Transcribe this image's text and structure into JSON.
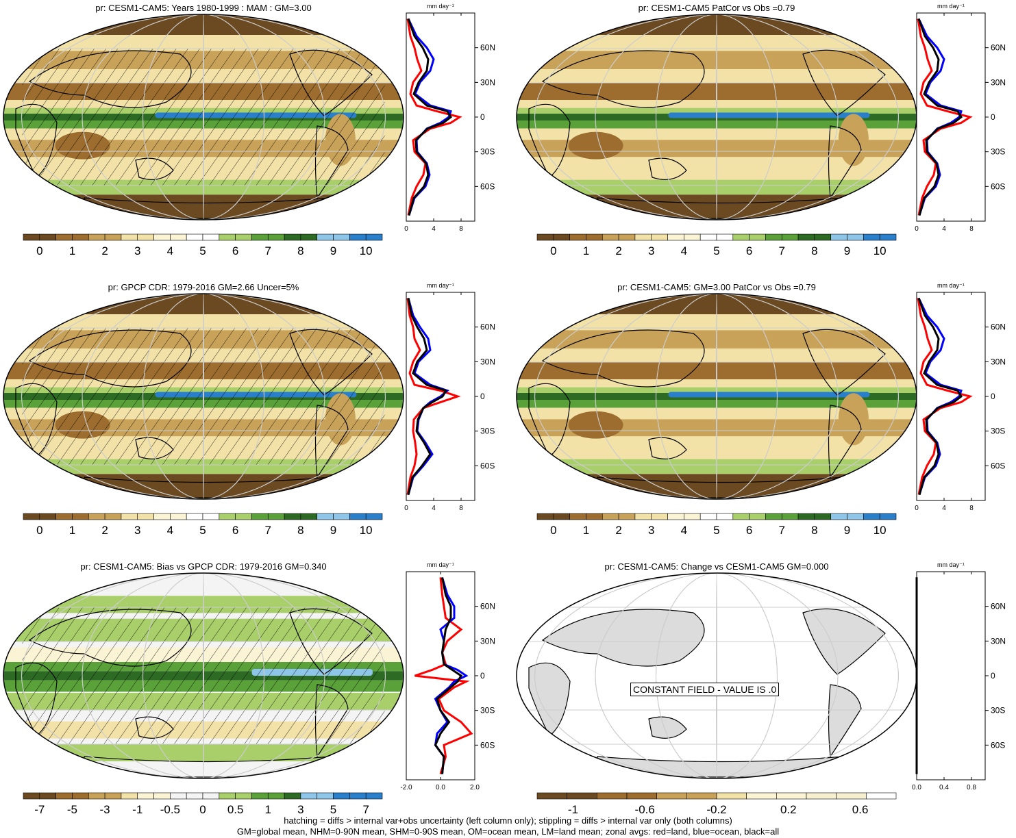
{
  "colors": {
    "brown_dark": "#6b4a22",
    "brown": "#9c6d2e",
    "tan": "#c9a25a",
    "cream": "#f2e2a8",
    "light_cream": "#fbf4d4",
    "green_light": "#a9cf6a",
    "green": "#5aa13a",
    "green_dark": "#2d6b24",
    "blue_light": "#8ec6ea",
    "blue": "#2a7fcb",
    "land_gray": "#dcdcdc",
    "zonal_land": "#ff0000",
    "zonal_ocean": "#0000ff",
    "zonal_all": "#000000"
  },
  "panels": [
    {
      "id": "model-mean",
      "title": "pr: CESM1-CAM5: Years 1980-1999 : MAM : GM=3.00",
      "zonal_unit": "mm day⁻¹",
      "colorbar_labels": [
        "0",
        "1",
        "2",
        "3",
        "4",
        "5",
        "6",
        "7",
        "8",
        "9",
        "10"
      ],
      "zonal_xticks": [
        "0",
        "4",
        "8"
      ],
      "lat_ticks": [
        "60N",
        "30N",
        "0",
        "30S",
        "60S"
      ],
      "map_style": "hatched"
    },
    {
      "id": "model-mean-patcor",
      "title": "pr: CESM1-CAM5 PatCor vs Obs =0.79",
      "zonal_unit": "mm day⁻¹",
      "colorbar_labels": [
        "0",
        "1",
        "2",
        "3",
        "4",
        "5",
        "6",
        "7",
        "8",
        "9",
        "10"
      ],
      "zonal_xticks": [
        "0",
        "4",
        "8"
      ],
      "lat_ticks": [
        "60N",
        "30N",
        "0",
        "30S",
        "60S"
      ],
      "map_style": "plain"
    },
    {
      "id": "obs",
      "title": "pr: GPCP CDR: 1979-2016 GM=2.66 Uncer=5%",
      "zonal_unit": "mm day⁻¹",
      "colorbar_labels": [
        "0",
        "1",
        "2",
        "3",
        "4",
        "5",
        "6",
        "7",
        "8",
        "9",
        "10"
      ],
      "zonal_xticks": [
        "0",
        "4",
        "8"
      ],
      "lat_ticks": [
        "60N",
        "30N",
        "0",
        "30S",
        "60S"
      ],
      "map_style": "hatched"
    },
    {
      "id": "model-gm-patcor",
      "title": "pr: CESM1-CAM5: GM=3.00 PatCor vs Obs =0.79",
      "zonal_unit": "mm day⁻¹",
      "colorbar_labels": [
        "0",
        "1",
        "2",
        "3",
        "4",
        "5",
        "6",
        "7",
        "8",
        "9",
        "10"
      ],
      "zonal_xticks": [
        "0",
        "4",
        "8"
      ],
      "lat_ticks": [
        "60N",
        "30N",
        "0",
        "30S",
        "60S"
      ],
      "map_style": "plain"
    },
    {
      "id": "bias",
      "title": "pr: CESM1-CAM5: Bias vs GPCP CDR: 1979-2016 GM=0.340",
      "zonal_unit": "mm day⁻¹",
      "colorbar_labels": [
        "-7",
        "-5",
        "-3",
        "-1",
        "-0.5",
        "0",
        "0.5",
        "1",
        "3",
        "5",
        "7"
      ],
      "zonal_xticks": [
        "-2.0",
        "0.0",
        "2.0"
      ],
      "lat_ticks": [
        "60N",
        "30N",
        "0",
        "30S",
        "60S"
      ],
      "map_style": "bias"
    },
    {
      "id": "change",
      "title": "pr: CESM1-CAM5: Change vs CESM1-CAM5 GM=0.000",
      "zonal_unit": "mm day⁻¹",
      "colorbar_labels": [
        "-1",
        "-0.6",
        "-0.2",
        "0.2",
        "0.6"
      ],
      "zonal_xticks": [
        "0.0",
        "0.4",
        "0.8"
      ],
      "lat_ticks": [
        "60N",
        "30N",
        "0",
        "30S",
        "60S"
      ],
      "map_style": "constant",
      "constant_label": "CONSTANT FIELD - VALUE IS .0"
    }
  ],
  "footer": {
    "line1": "hatching = diffs > internal var+obs uncertainty (left column only); stippling = diffs > internal var only (both columns)",
    "line2": "GM=global mean, NHM=0-90N mean, SHM=0-90S mean, OM=ocean mean, LM=land mean; zonal avgs: red=land, blue=ocean, black=all"
  },
  "chart_data": [
    {
      "type": "line",
      "title": "",
      "xlabel": "mm day⁻¹",
      "ylabel": "",
      "xlim": [
        0,
        10
      ],
      "ylim": [
        -90,
        90
      ],
      "y_lat": [
        -85,
        -70,
        -60,
        -50,
        -40,
        -30,
        -20,
        -10,
        -5,
        0,
        5,
        10,
        20,
        30,
        40,
        50,
        60,
        70,
        85
      ],
      "series": [
        {
          "name": "land",
          "values": [
            0.3,
            0.8,
            1.5,
            2.5,
            2.8,
            1.2,
            1.0,
            3.5,
            6.5,
            7.8,
            4.5,
            1.5,
            0.6,
            1.0,
            2.2,
            1.6,
            1.2,
            0.6,
            0.2
          ]
        },
        {
          "name": "ocean",
          "values": [
            0.4,
            1.2,
            2.8,
            3.4,
            3.0,
            1.6,
            1.5,
            3.0,
            5.0,
            6.2,
            6.5,
            3.5,
            1.3,
            2.0,
            3.5,
            4.0,
            3.0,
            1.5,
            0.3
          ]
        },
        {
          "name": "all",
          "values": [
            0.4,
            1.1,
            2.6,
            3.2,
            2.9,
            1.5,
            1.4,
            3.1,
            5.4,
            6.5,
            6.0,
            3.0,
            1.1,
            1.8,
            3.0,
            3.2,
            2.4,
            1.2,
            0.3
          ]
        }
      ]
    },
    {
      "type": "line",
      "title": "",
      "xlabel": "mm day⁻¹",
      "ylabel": "",
      "xlim": [
        0,
        10
      ],
      "ylim": [
        -90,
        90
      ],
      "y_lat": [
        -85,
        -70,
        -60,
        -50,
        -40,
        -30,
        -20,
        -10,
        -5,
        0,
        5,
        10,
        20,
        30,
        40,
        50,
        60,
        70,
        85
      ],
      "series": [
        {
          "name": "land",
          "values": [
            0.3,
            0.8,
            1.5,
            2.5,
            2.8,
            1.2,
            1.0,
            3.5,
            6.5,
            7.8,
            4.5,
            1.5,
            0.6,
            1.0,
            2.2,
            1.6,
            1.2,
            0.6,
            0.2
          ]
        },
        {
          "name": "ocean",
          "values": [
            0.4,
            1.2,
            2.8,
            3.4,
            3.0,
            1.6,
            1.5,
            3.0,
            5.0,
            6.2,
            6.5,
            3.5,
            1.3,
            2.0,
            3.5,
            4.0,
            3.0,
            1.5,
            0.3
          ]
        },
        {
          "name": "all",
          "values": [
            0.4,
            1.1,
            2.6,
            3.2,
            2.9,
            1.5,
            1.4,
            3.1,
            5.4,
            6.5,
            6.0,
            3.0,
            1.1,
            1.8,
            3.0,
            3.2,
            2.4,
            1.2,
            0.3
          ]
        }
      ]
    },
    {
      "type": "line",
      "title": "",
      "xlabel": "mm day⁻¹",
      "ylabel": "",
      "xlim": [
        0,
        10
      ],
      "ylim": [
        -90,
        90
      ],
      "y_lat": [
        -85,
        -70,
        -60,
        -50,
        -40,
        -30,
        -20,
        -10,
        -5,
        0,
        5,
        10,
        20,
        30,
        40,
        50,
        60,
        70,
        85
      ],
      "series": [
        {
          "name": "land",
          "values": [
            0.2,
            0.6,
            1.2,
            1.5,
            1.3,
            1.0,
            1.1,
            2.5,
            5.0,
            7.5,
            5.0,
            1.2,
            0.5,
            1.0,
            2.0,
            1.2,
            1.0,
            0.5,
            0.2
          ]
        },
        {
          "name": "ocean",
          "values": [
            0.3,
            1.0,
            2.5,
            3.8,
            2.8,
            1.6,
            1.8,
            2.5,
            3.5,
            5.0,
            6.0,
            3.5,
            1.2,
            1.8,
            3.5,
            3.2,
            2.0,
            1.0,
            0.3
          ]
        },
        {
          "name": "all",
          "values": [
            0.3,
            0.9,
            2.3,
            3.5,
            2.6,
            1.5,
            1.7,
            2.5,
            3.8,
            5.3,
            5.8,
            3.0,
            1.0,
            1.6,
            3.0,
            2.6,
            1.6,
            0.8,
            0.3
          ]
        }
      ]
    },
    {
      "type": "line",
      "title": "",
      "xlabel": "mm day⁻¹",
      "ylabel": "",
      "xlim": [
        0,
        10
      ],
      "ylim": [
        -90,
        90
      ],
      "y_lat": [
        -85,
        -70,
        -60,
        -50,
        -40,
        -30,
        -20,
        -10,
        -5,
        0,
        5,
        10,
        20,
        30,
        40,
        50,
        60,
        70,
        85
      ],
      "series": [
        {
          "name": "land",
          "values": [
            0.3,
            0.8,
            1.5,
            2.5,
            2.8,
            1.2,
            1.0,
            3.5,
            6.5,
            7.8,
            4.5,
            1.5,
            0.6,
            1.0,
            2.2,
            1.6,
            1.2,
            0.6,
            0.2
          ]
        },
        {
          "name": "ocean",
          "values": [
            0.4,
            1.2,
            2.8,
            3.4,
            3.0,
            1.6,
            1.5,
            3.0,
            5.0,
            6.2,
            6.5,
            3.5,
            1.3,
            2.0,
            3.5,
            4.0,
            3.0,
            1.5,
            0.3
          ]
        },
        {
          "name": "all",
          "values": [
            0.4,
            1.1,
            2.6,
            3.2,
            2.9,
            1.5,
            1.4,
            3.1,
            5.4,
            6.5,
            6.0,
            3.0,
            1.1,
            1.8,
            3.0,
            3.2,
            2.4,
            1.2,
            0.3
          ]
        }
      ]
    },
    {
      "type": "line",
      "title": "",
      "xlabel": "mm day⁻¹",
      "ylabel": "",
      "xlim": [
        -2,
        2
      ],
      "ylim": [
        -90,
        90
      ],
      "y_lat": [
        -85,
        -70,
        -60,
        -50,
        -40,
        -30,
        -20,
        -10,
        -5,
        0,
        5,
        10,
        20,
        30,
        40,
        50,
        60,
        70,
        85
      ],
      "series": [
        {
          "name": "land",
          "values": [
            0.0,
            0.3,
            0.2,
            1.8,
            1.2,
            0.2,
            -0.1,
            0.8,
            1.5,
            -1.5,
            -0.5,
            0.3,
            0.1,
            0.4,
            1.2,
            0.3,
            0.2,
            0.1,
            0.0
          ]
        },
        {
          "name": "ocean",
          "values": [
            0.1,
            0.2,
            -0.3,
            -0.2,
            0.4,
            0.0,
            -0.3,
            0.5,
            0.8,
            1.5,
            1.0,
            0.2,
            0.1,
            0.2,
            0.0,
            0.8,
            0.8,
            0.4,
            0.1
          ]
        },
        {
          "name": "all",
          "values": [
            0.1,
            0.2,
            -0.3,
            0.0,
            0.5,
            0.0,
            -0.2,
            0.6,
            1.0,
            1.2,
            0.7,
            0.2,
            0.1,
            0.2,
            0.3,
            0.6,
            0.6,
            0.3,
            0.1
          ]
        }
      ]
    },
    {
      "type": "line",
      "title": "",
      "xlabel": "mm day⁻¹",
      "ylabel": "",
      "xlim": [
        0,
        1
      ],
      "ylim": [
        -90,
        90
      ],
      "y_lat": [
        -85,
        85
      ],
      "series": [
        {
          "name": "land",
          "values": [
            0,
            0
          ]
        },
        {
          "name": "ocean",
          "values": [
            0,
            0
          ]
        },
        {
          "name": "all",
          "values": [
            0,
            0
          ]
        }
      ]
    }
  ]
}
